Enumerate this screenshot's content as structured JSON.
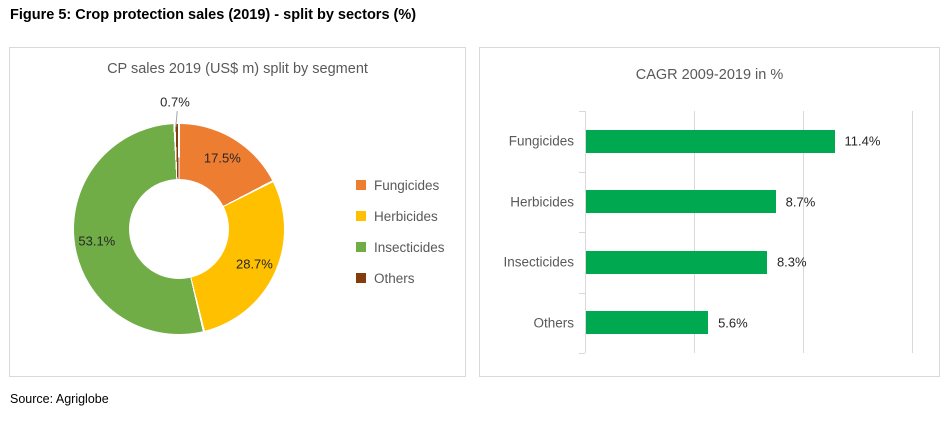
{
  "figure_title": "Figure 5: Crop protection sales (2019) - split by sectors (%)",
  "source": "Source: Agriglobe",
  "chart_data": [
    {
      "type": "pie",
      "subtype": "donut",
      "title": "CP sales 2019 (US$ m) split by segment",
      "categories": [
        "Fungicides",
        "Herbicides",
        "Insecticides",
        "Others"
      ],
      "values": [
        17.5,
        28.7,
        53.1,
        0.7
      ],
      "labels": [
        "17.5%",
        "28.7%",
        "53.1%",
        "0.7%"
      ],
      "colors": [
        "#ED7D31",
        "#FFC000",
        "#70AD47",
        "#843C0C"
      ],
      "start_angle": 0,
      "direction": "clockwise",
      "legend_position": "right",
      "outside_label_index": 3
    },
    {
      "type": "bar",
      "orientation": "horizontal",
      "title": "CAGR 2009-2019 in %",
      "categories": [
        "Fungicides",
        "Herbicides",
        "Insecticides",
        "Others"
      ],
      "values": [
        11.4,
        8.7,
        8.3,
        5.6
      ],
      "labels": [
        "11.4%",
        "8.7%",
        "8.3%",
        "5.6%"
      ],
      "bar_color": "#00A850",
      "axis_color": "#D9D9D9",
      "xlim": [
        0,
        15
      ],
      "gridlines": [
        5,
        10,
        15
      ],
      "legend": false
    }
  ]
}
